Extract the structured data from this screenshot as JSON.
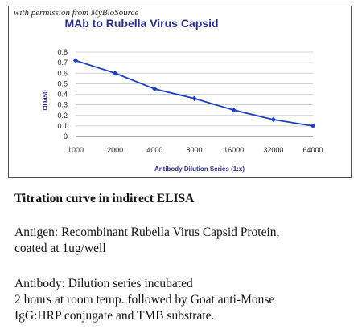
{
  "watermark": "with permission from MyBioSource",
  "chart_data": {
    "type": "line",
    "title": "MAb to Rubella Virus Capsid",
    "xlabel": "Antibody Dilution Series (1:x)",
    "ylabel": "OD450",
    "categories": [
      "1000",
      "2000",
      "4000",
      "8000",
      "16000",
      "32000",
      "64000"
    ],
    "values": [
      0.72,
      0.6,
      0.45,
      0.36,
      0.25,
      0.16,
      0.1
    ],
    "ylim": [
      0,
      0.8
    ],
    "yticks": [
      "0",
      "0.1",
      "0.2",
      "0.3",
      "0.4",
      "0.5",
      "0.6",
      "0.7",
      "0.8"
    ],
    "grid": true,
    "color": "#1f3fbf"
  },
  "caption": {
    "title": "Titration curve  in indirect ELISA",
    "antigen_lines": [
      "Antigen:  Recombinant Rubella Virus Capsid Protein,",
      "coated at 1ug/well"
    ],
    "antibody_lines": [
      "Antibody:  Dilution series incubated",
      "2 hours at room temp. followed by Goat anti-Mouse",
      "IgG:HRP conjugate and TMB substrate."
    ]
  }
}
